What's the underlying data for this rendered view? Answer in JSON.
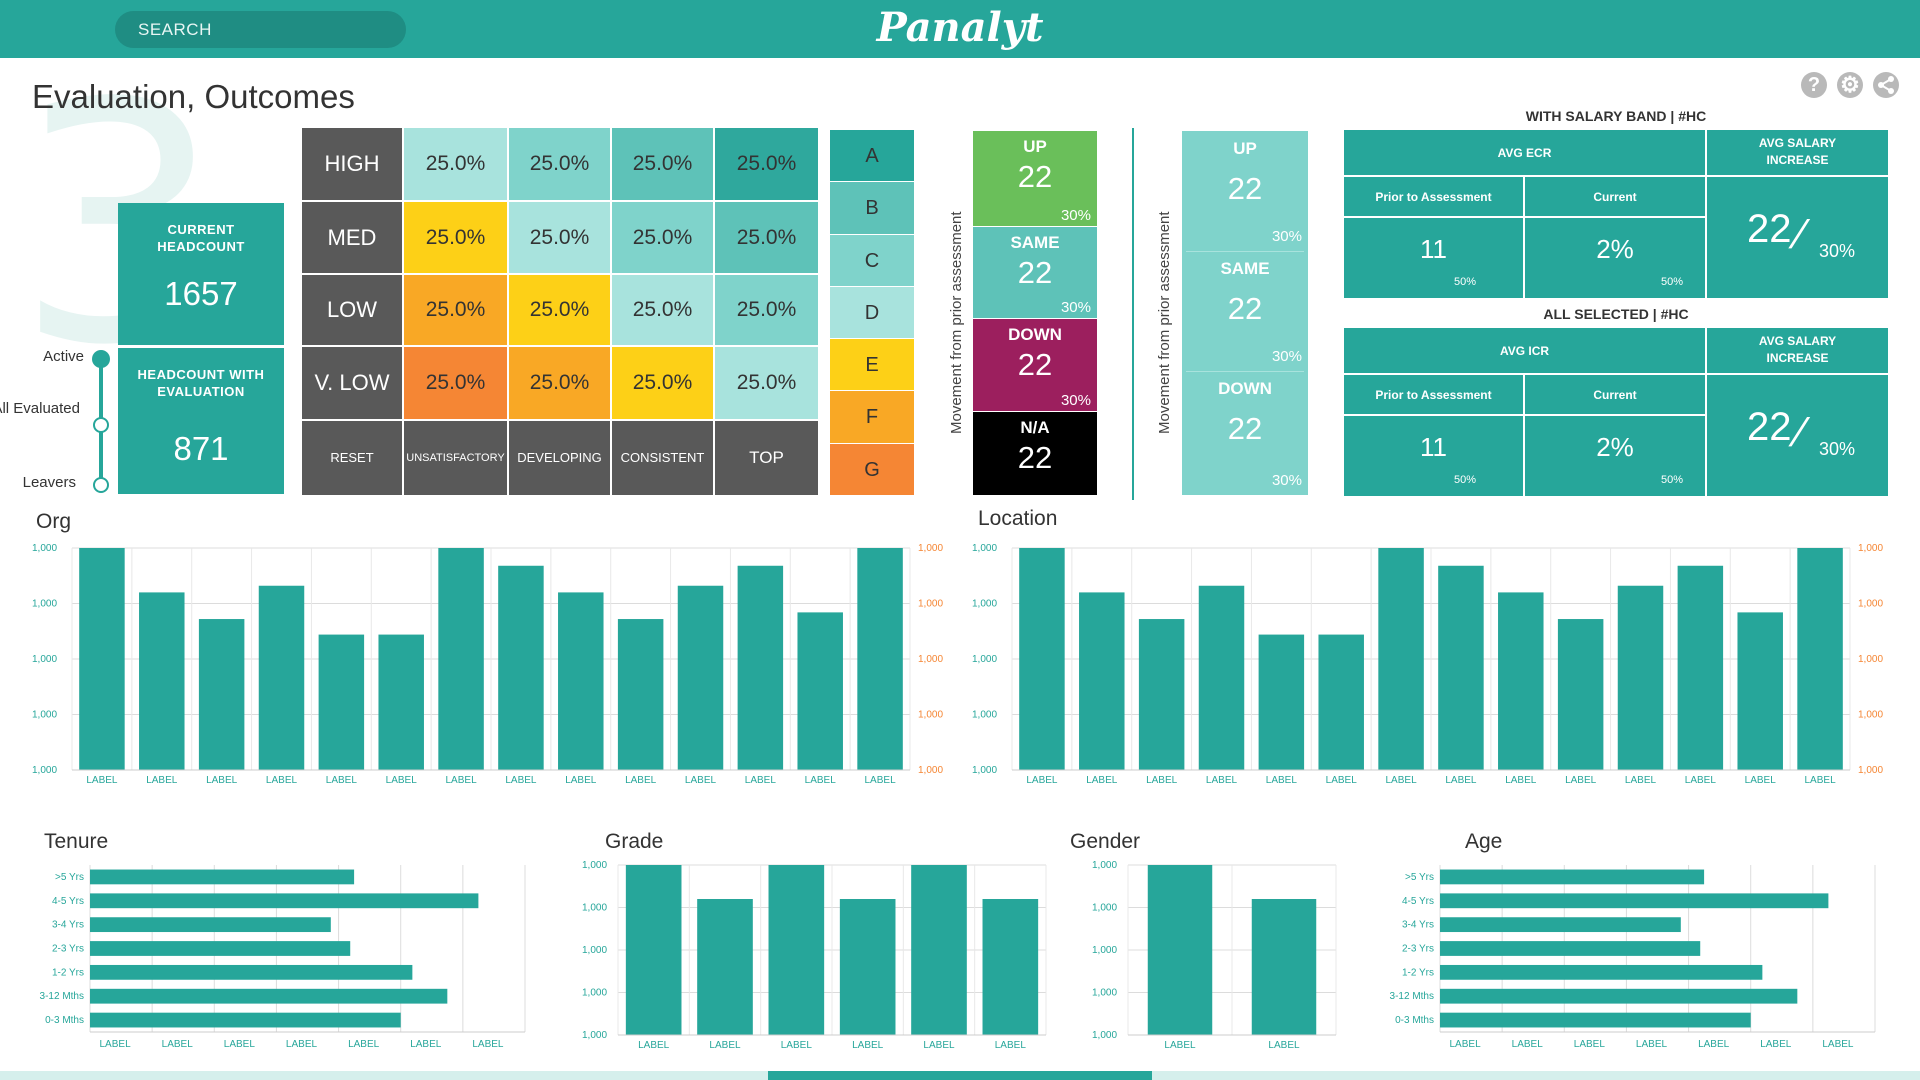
{
  "header": {
    "search_placeholder": "SEARCH",
    "logo_text": "Panalyt"
  },
  "page": {
    "title": "Evaluation, Outcomes",
    "step_number": "3"
  },
  "toolbar": {
    "help_icon": "help-icon",
    "settings_icon": "gear-icon",
    "share_icon": "share-icon"
  },
  "kpis": {
    "current_headcount_label": "CURRENT HEADCOUNT",
    "current_headcount_value": "1657",
    "headcount_eval_label": "HEADCOUNT WITH EVALUATION",
    "headcount_eval_value": "871"
  },
  "status_slider": {
    "options": [
      "Active",
      "All Evaluated",
      "Leavers"
    ],
    "selected": "Active"
  },
  "matrix": {
    "rows": [
      "HIGH",
      "MED",
      "LOW",
      "V. LOW"
    ],
    "cols": [
      "UNSATISFACTORY",
      "DEVELOPING",
      "CONSISTENT",
      "TOP"
    ],
    "reset_label": "RESET",
    "cells": [
      [
        "25.0%",
        "25.0%",
        "25.0%",
        "25.0%"
      ],
      [
        "25.0%",
        "25.0%",
        "25.0%",
        "25.0%"
      ],
      [
        "25.0%",
        "25.0%",
        "25.0%",
        "25.0%"
      ],
      [
        "25.0%",
        "25.0%",
        "25.0%",
        "25.0%"
      ]
    ],
    "colors": [
      [
        "#a8e3dd",
        "#7fd3cb",
        "#5ec2b8",
        "#2fa89d"
      ],
      [
        "#fdd017",
        "#a8e3dd",
        "#7fd3cb",
        "#5ec2b8"
      ],
      [
        "#f9a825",
        "#fdd017",
        "#a8e3dd",
        "#7fd3cb"
      ],
      [
        "#f58634",
        "#f9a825",
        "#fdd017",
        "#a8e3dd"
      ]
    ]
  },
  "grades": {
    "labels": [
      "A",
      "B",
      "C",
      "D",
      "E",
      "F",
      "G"
    ],
    "colors": [
      "#26a69a",
      "#5ec2b8",
      "#7fd3cb",
      "#a8e3dd",
      "#fdd017",
      "#f9a825",
      "#f58634"
    ]
  },
  "movement_left": {
    "axis_label": "Movement from prior assessment",
    "items": [
      {
        "label": "UP",
        "value": "22",
        "pct": "30%",
        "color": "#6abf5a"
      },
      {
        "label": "SAME",
        "value": "22",
        "pct": "30%",
        "color": "#5ec2b8"
      },
      {
        "label": "DOWN",
        "value": "22",
        "pct": "30%",
        "color": "#9c1f5e"
      },
      {
        "label": "N/A",
        "value": "22",
        "pct": "",
        "color": "#000000"
      }
    ]
  },
  "movement_right": {
    "axis_label": "Movement from prior assessment",
    "items": [
      {
        "label": "UP",
        "value": "22",
        "pct": "30%"
      },
      {
        "label": "SAME",
        "value": "22",
        "pct": "30%"
      },
      {
        "label": "DOWN",
        "value": "22",
        "pct": "30%"
      }
    ]
  },
  "salary_band": {
    "title": "WITH SALARY BAND | #HC",
    "metric_label": "AVG ECR",
    "prior_label": "Prior to Assessment",
    "current_label": "Current",
    "prior_value": "11",
    "prior_pct": "50%",
    "current_value": "2%",
    "current_pct": "50%",
    "increase_label": "AVG SALARY INCREASE",
    "increase_value": "22",
    "increase_pct": "30%"
  },
  "all_selected": {
    "title": "ALL SELECTED | #HC",
    "metric_label": "AVG ICR",
    "prior_label": "Prior to Assessment",
    "current_label": "Current",
    "prior_value": "11",
    "prior_pct": "50%",
    "current_value": "2%",
    "current_pct": "50%",
    "increase_label": "AVG SALARY INCREASE",
    "increase_value": "22",
    "increase_pct": "30%"
  },
  "chart_data": [
    {
      "type": "bar",
      "title": "Org",
      "categories": [
        "LABEL",
        "LABEL",
        "LABEL",
        "LABEL",
        "LABEL",
        "LABEL",
        "LABEL",
        "LABEL",
        "LABEL",
        "LABEL",
        "LABEL",
        "LABEL",
        "LABEL",
        "LABEL"
      ],
      "values": [
        100,
        80,
        68,
        83,
        61,
        61,
        100,
        92,
        80,
        68,
        83,
        92,
        71,
        100
      ],
      "yticks": [
        "1,000",
        "1,000",
        "1,000",
        "1,000",
        "1,000"
      ],
      "ylim": [
        0,
        100
      ]
    },
    {
      "type": "bar",
      "title": "Location",
      "categories": [
        "LABEL",
        "LABEL",
        "LABEL",
        "LABEL",
        "LABEL",
        "LABEL",
        "LABEL",
        "LABEL",
        "LABEL",
        "LABEL",
        "LABEL",
        "LABEL",
        "LABEL",
        "LABEL"
      ],
      "values": [
        100,
        80,
        68,
        83,
        61,
        61,
        100,
        92,
        80,
        68,
        83,
        92,
        71,
        100
      ],
      "yticks": [
        "1,000",
        "1,000",
        "1,000",
        "1,000",
        "1,000"
      ],
      "ylim": [
        0,
        100
      ]
    },
    {
      "type": "bar",
      "orientation": "horizontal",
      "title": "Tenure",
      "categories": [
        ">5 Yrs",
        "4-5 Yrs",
        "3-4 Yrs",
        "2-3 Yrs",
        "1-2 Yrs",
        "3-12 Mths",
        "0-3 Mths"
      ],
      "values": [
        68,
        100,
        62,
        67,
        83,
        92,
        80
      ],
      "xticks": [
        "LABEL",
        "LABEL",
        "LABEL",
        "LABEL",
        "LABEL",
        "LABEL",
        "LABEL"
      ],
      "xlim": [
        0,
        112
      ]
    },
    {
      "type": "bar",
      "title": "Grade",
      "categories": [
        "LABEL",
        "LABEL",
        "LABEL",
        "LABEL",
        "LABEL",
        "LABEL"
      ],
      "values": [
        100,
        80,
        100,
        80,
        100,
        80
      ],
      "yticks": [
        "1,000",
        "1,000",
        "1,000",
        "1,000",
        "1,000"
      ],
      "ylim": [
        0,
        100
      ]
    },
    {
      "type": "bar",
      "title": "Gender",
      "categories": [
        "LABEL",
        "LABEL"
      ],
      "values": [
        100,
        80
      ],
      "yticks": [
        "1,000",
        "1,000",
        "1,000",
        "1,000",
        "1,000"
      ],
      "ylim": [
        0,
        100
      ]
    },
    {
      "type": "bar",
      "orientation": "horizontal",
      "title": "Age",
      "categories": [
        ">5 Yrs",
        "4-5 Yrs",
        "3-4 Yrs",
        "2-3 Yrs",
        "1-2 Yrs",
        "3-12 Mths",
        "0-3 Mths"
      ],
      "values": [
        68,
        100,
        62,
        67,
        83,
        92,
        80
      ],
      "xticks": [
        "LABEL",
        "LABEL",
        "LABEL",
        "LABEL",
        "LABEL",
        "LABEL",
        "LABEL"
      ],
      "xlim": [
        0,
        112
      ]
    }
  ]
}
